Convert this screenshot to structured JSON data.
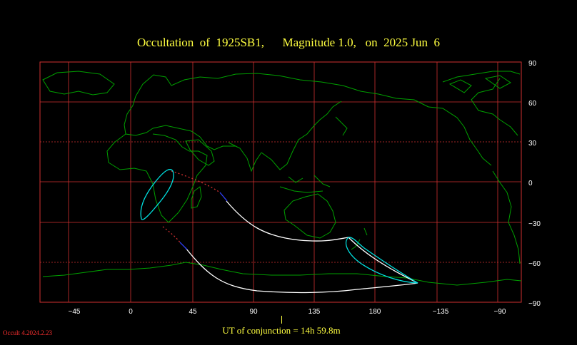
{
  "title": "Occultation  of  1925SB1,      Magnitude 1.0,   on  2025 Jun  6",
  "axes": {
    "x_ticks": [
      "−45",
      "0",
      "45",
      "90",
      "135",
      "180",
      "−135",
      "−90"
    ],
    "y_ticks": [
      "90",
      "60",
      "30",
      "0",
      "−30",
      "−60",
      "−90"
    ]
  },
  "ut_label": "UT of conjunction = 14h 59.8m",
  "version": "Occult 4.2024.2.23",
  "colors": {
    "land": "#00a000",
    "grid": "#d03030",
    "path": "#ffffff",
    "limit": "#00e0e0",
    "text": "#ffff40"
  }
}
